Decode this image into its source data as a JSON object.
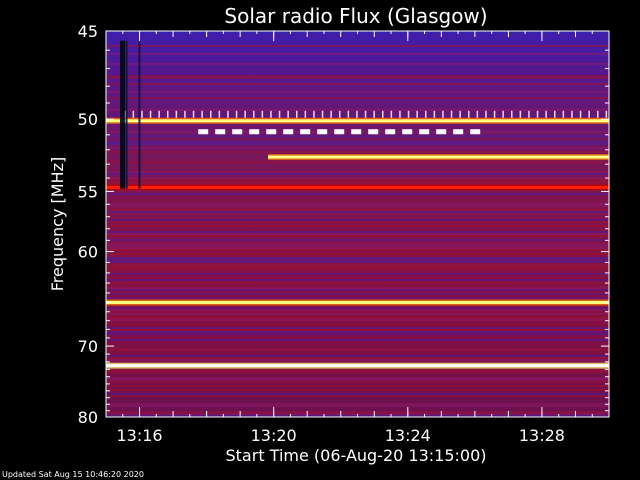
{
  "chart_data": {
    "type": "heatmap",
    "title": "Solar radio Flux (Glasgow)",
    "xlabel": "Start Time (06-Aug-20 13:15:00)",
    "ylabel": "Frequency [MHz]",
    "x_start": "13:15:00",
    "x_end": "13:30:00",
    "x_ticks": [
      "13:16",
      "13:20",
      "13:24",
      "13:28"
    ],
    "y_ticks": [
      45,
      50,
      55,
      60,
      70,
      80
    ],
    "ylim": [
      45,
      80
    ],
    "y_scale": "reciprocal",
    "colormap": [
      "#1a0026",
      "#3a1aa0",
      "#7a1060",
      "#c00000",
      "#ff2000",
      "#ff8000",
      "#ffff80",
      "#ffffff"
    ],
    "bright_bands": [
      {
        "freq": 50.1,
        "start": "13:15:00",
        "end": "13:30:00",
        "level": 0.85
      },
      {
        "freq": 50.8,
        "start": "13:17:45",
        "end": "13:26:00",
        "level": 0.95,
        "pattern": "dashed"
      },
      {
        "freq": 52.5,
        "start": "13:19:50",
        "end": "13:30:00",
        "level": 0.8
      },
      {
        "freq": 54.7,
        "start": "13:15:00",
        "end": "13:30:00",
        "level": 0.6
      },
      {
        "freq": 65.0,
        "start": "13:15:00",
        "end": "13:30:00",
        "level": 0.85
      },
      {
        "freq": 72.5,
        "start": "13:15:00",
        "end": "13:30:00",
        "level": 1.0
      }
    ]
  },
  "footer": "Updated Sat Aug 15 10:46:20 2020"
}
